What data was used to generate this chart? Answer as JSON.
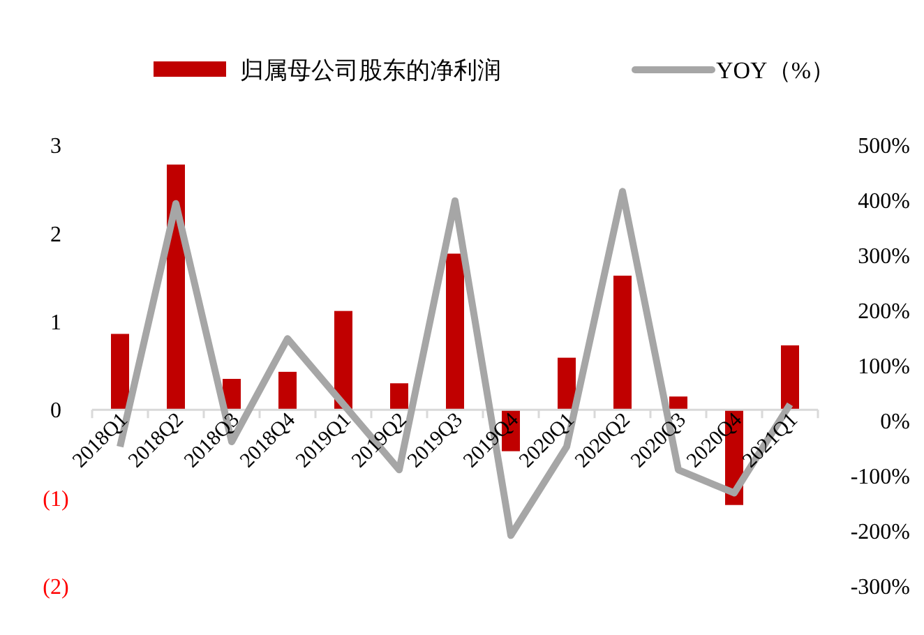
{
  "chart_data": {
    "type": "bar",
    "categories": [
      "2018Q1",
      "2018Q2",
      "2018Q3",
      "2018Q4",
      "2019Q1",
      "2019Q2",
      "2019Q3",
      "2019Q4",
      "2020Q1",
      "2020Q2",
      "2020Q3",
      "2020Q4",
      "2021Q1"
    ],
    "series": [
      {
        "name": "归属母公司股东的净利润",
        "color": "#c00000",
        "values": [
          0.86,
          2.78,
          0.35,
          0.43,
          1.12,
          0.3,
          1.77,
          -0.47,
          0.59,
          1.52,
          0.15,
          -1.08,
          0.73
        ]
      },
      {
        "name": "YOY（%）",
        "type": "line",
        "axis": "y2",
        "color": "#a6a6a6",
        "values": [
          -47,
          394,
          -38,
          149,
          30,
          -89,
          399,
          -208,
          -47,
          416,
          -89,
          -131,
          30
        ]
      }
    ],
    "ylim": [
      -2,
      3
    ],
    "yticks": [
      {
        "value": -2,
        "label": "(2)"
      },
      {
        "value": -1,
        "label": "(1)"
      },
      0,
      1,
      2,
      3
    ],
    "y2lim": [
      -300,
      500
    ],
    "y2ticks": [
      {
        "value": -300,
        "label": "-300%"
      },
      {
        "value": -200,
        "label": "-200%"
      },
      {
        "value": -100,
        "label": "-100%"
      },
      {
        "value": 0,
        "label": "0%"
      },
      {
        "value": 100,
        "label": "100%"
      },
      {
        "value": 200,
        "label": "200%"
      },
      {
        "value": 300,
        "label": "300%"
      },
      {
        "value": 400,
        "label": "400%"
      },
      {
        "value": 500,
        "label": "500%"
      }
    ],
    "legend": "top",
    "grid": false,
    "marker": "none",
    "line_style": "solid"
  }
}
